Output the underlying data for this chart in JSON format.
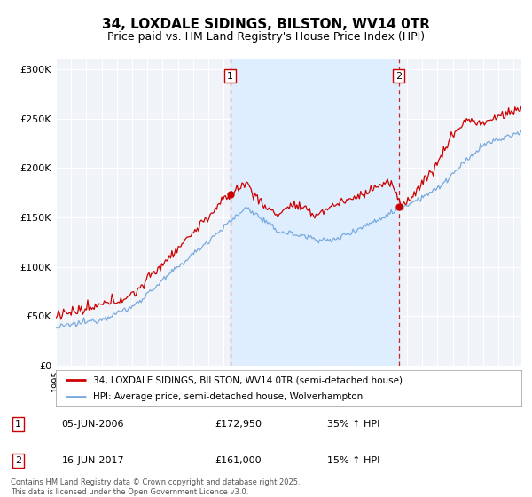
{
  "title": "34, LOXDALE SIDINGS, BILSTON, WV14 0TR",
  "subtitle": "Price paid vs. HM Land Registry's House Price Index (HPI)",
  "legend_line1": "34, LOXDALE SIDINGS, BILSTON, WV14 0TR (semi-detached house)",
  "legend_line2": "HPI: Average price, semi-detached house, Wolverhampton",
  "transaction1_date": "05-JUN-2006",
  "transaction1_price": "£172,950",
  "transaction1_hpi": "35% ↑ HPI",
  "transaction1_year": 2006.43,
  "transaction1_value": 172950,
  "transaction2_date": "16-JUN-2017",
  "transaction2_price": "£161,000",
  "transaction2_hpi": "15% ↑ HPI",
  "transaction2_year": 2017.46,
  "transaction2_value": 161000,
  "ylim": [
    0,
    310000
  ],
  "yticks": [
    0,
    50000,
    100000,
    150000,
    200000,
    250000,
    300000
  ],
  "ytick_labels": [
    "£0",
    "£50K",
    "£100K",
    "£150K",
    "£200K",
    "£250K",
    "£300K"
  ],
  "xmin": 1995,
  "xmax": 2025.5,
  "red_color": "#cc0000",
  "blue_color": "#7aaadd",
  "vline_color": "#cc0000",
  "shaded_color": "#ddeeff",
  "bg_color": "#f0f4f8",
  "title_fontsize": 11,
  "subtitle_fontsize": 9,
  "footnote": "Contains HM Land Registry data © Crown copyright and database right 2025.\nThis data is licensed under the Open Government Licence v3.0."
}
